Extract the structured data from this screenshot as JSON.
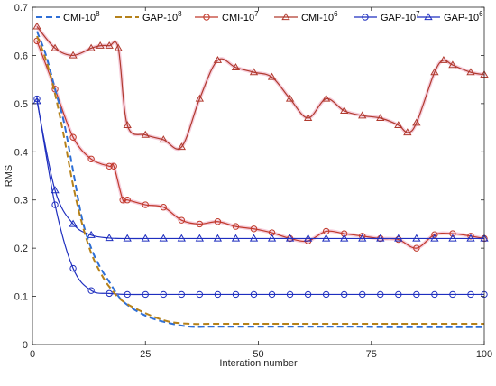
{
  "chart_data": {
    "type": "line",
    "xlabel": "Interation number",
    "ylabel": "RMS",
    "xlim": [
      0,
      100
    ],
    "ylim": [
      0,
      0.7
    ],
    "xticks": [
      0,
      25,
      50,
      75,
      100
    ],
    "yticks": [
      0,
      0.1,
      0.2,
      0.3,
      0.4,
      0.5,
      0.6,
      0.7
    ],
    "xtick_labels": [
      "0",
      "25",
      "50",
      "75",
      "100"
    ],
    "ytick_labels": [
      "0",
      "0.1",
      "0.2",
      "0.3",
      "0.4",
      "0.5",
      "0.6",
      "0.7"
    ],
    "grid": false,
    "legend_placement": "top",
    "series": [
      {
        "name": "CMI-10^8",
        "label_base": "CMI-10",
        "label_exp": "8",
        "color": "#2e6fd6",
        "line": "dashed",
        "marker": "none",
        "x": [
          1,
          3,
          5,
          7,
          9,
          11,
          13,
          15,
          17,
          20,
          25,
          30,
          35,
          40,
          50,
          60,
          70,
          80,
          90,
          100
        ],
        "y": [
          0.65,
          0.6,
          0.53,
          0.46,
          0.36,
          0.26,
          0.2,
          0.16,
          0.13,
          0.09,
          0.06,
          0.045,
          0.037,
          0.037,
          0.037,
          0.037,
          0.037,
          0.036,
          0.036,
          0.036
        ]
      },
      {
        "name": "GAP-10^8",
        "label_base": "GAP-10",
        "label_exp": "8",
        "color": "#b5811a",
        "line": "dashed",
        "marker": "none",
        "x": [
          1,
          3,
          5,
          7,
          9,
          11,
          13,
          15,
          17,
          20,
          25,
          30,
          35,
          40,
          50,
          60,
          70,
          80,
          90,
          100
        ],
        "y": [
          0.64,
          0.59,
          0.52,
          0.43,
          0.33,
          0.25,
          0.19,
          0.15,
          0.12,
          0.09,
          0.065,
          0.048,
          0.043,
          0.043,
          0.043,
          0.043,
          0.043,
          0.043,
          0.043,
          0.043
        ]
      },
      {
        "name": "CMI-10^7",
        "label_base": "CMI-10",
        "label_exp": "7",
        "color": "#c0392b",
        "line": "solid",
        "marker": "circle",
        "highlight": "#f4c6d6",
        "x": [
          1,
          5,
          9,
          13,
          17,
          18,
          20,
          21,
          25,
          29,
          33,
          37,
          41,
          45,
          49,
          53,
          57,
          61,
          65,
          69,
          73,
          77,
          81,
          85,
          89,
          93,
          97,
          100
        ],
        "y": [
          0.63,
          0.53,
          0.43,
          0.385,
          0.37,
          0.37,
          0.3,
          0.3,
          0.29,
          0.285,
          0.258,
          0.25,
          0.255,
          0.245,
          0.24,
          0.232,
          0.22,
          0.215,
          0.235,
          0.23,
          0.225,
          0.22,
          0.218,
          0.2,
          0.228,
          0.23,
          0.225,
          0.22
        ]
      },
      {
        "name": "CMI-10^6",
        "label_base": "CMI-10",
        "label_exp": "6",
        "color": "#b03a2e",
        "line": "solid",
        "marker": "triangle",
        "highlight": "#f4c6d6",
        "x": [
          1,
          5,
          9,
          13,
          15,
          17,
          19,
          21,
          25,
          29,
          33,
          37,
          41,
          45,
          49,
          53,
          57,
          61,
          65,
          69,
          73,
          77,
          81,
          83,
          85,
          89,
          91,
          93,
          97,
          100
        ],
        "y": [
          0.66,
          0.615,
          0.6,
          0.615,
          0.62,
          0.62,
          0.615,
          0.455,
          0.435,
          0.425,
          0.41,
          0.51,
          0.59,
          0.575,
          0.565,
          0.555,
          0.51,
          0.47,
          0.51,
          0.485,
          0.475,
          0.47,
          0.455,
          0.44,
          0.46,
          0.565,
          0.59,
          0.58,
          0.565,
          0.56
        ]
      },
      {
        "name": "GAP-10^7",
        "label_base": "GAP-10",
        "label_exp": "7",
        "color": "#1f2fbf",
        "line": "solid",
        "marker": "circle",
        "x": [
          1,
          5,
          9,
          13,
          17,
          21,
          25,
          29,
          33,
          37,
          41,
          45,
          49,
          53,
          57,
          61,
          65,
          69,
          73,
          77,
          81,
          85,
          89,
          93,
          97,
          100
        ],
        "y": [
          0.51,
          0.29,
          0.158,
          0.112,
          0.106,
          0.104,
          0.104,
          0.104,
          0.104,
          0.104,
          0.104,
          0.104,
          0.104,
          0.104,
          0.104,
          0.104,
          0.104,
          0.104,
          0.104,
          0.104,
          0.104,
          0.104,
          0.104,
          0.104,
          0.104,
          0.104
        ]
      },
      {
        "name": "GAP-10^6",
        "label_base": "GAP-10",
        "label_exp": "6",
        "color": "#1f2fbf",
        "line": "solid",
        "marker": "triangle",
        "x": [
          1,
          5,
          9,
          13,
          17,
          21,
          25,
          29,
          33,
          37,
          41,
          45,
          49,
          53,
          57,
          61,
          65,
          69,
          73,
          77,
          81,
          85,
          89,
          93,
          97,
          100
        ],
        "y": [
          0.505,
          0.32,
          0.25,
          0.227,
          0.221,
          0.22,
          0.22,
          0.22,
          0.22,
          0.22,
          0.22,
          0.22,
          0.22,
          0.22,
          0.22,
          0.22,
          0.22,
          0.22,
          0.22,
          0.22,
          0.22,
          0.22,
          0.22,
          0.22,
          0.22,
          0.22
        ]
      }
    ]
  }
}
